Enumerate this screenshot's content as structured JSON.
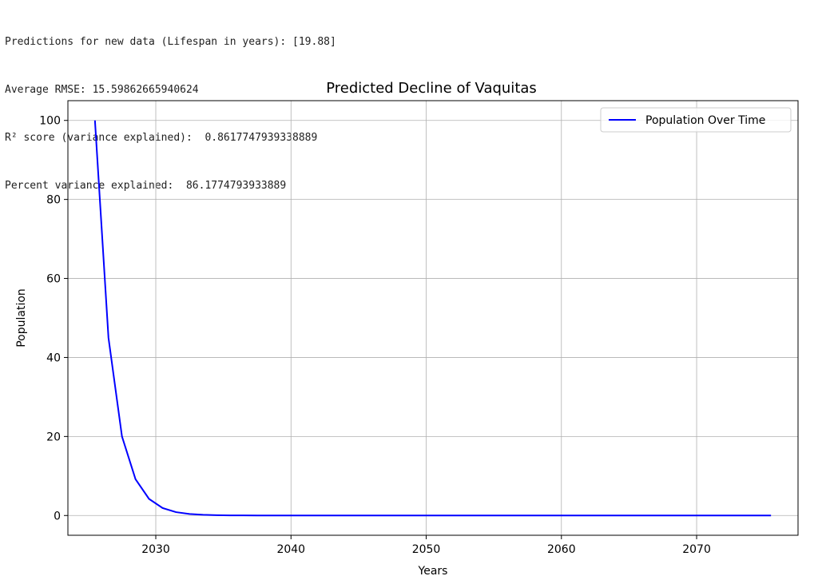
{
  "console": {
    "lines": [
      "Predictions for new data (Lifespan in years): [19.88]",
      "Average RMSE: 15.59862665940624",
      "R² score (variance explained):  0.8617747939338889",
      "Percent variance explained:  86.1774793933889"
    ]
  },
  "chart_data": {
    "type": "line",
    "title": "Predicted Decline of Vaquitas",
    "xlabel": "Years",
    "ylabel": "Population",
    "xlim": [
      2023.5,
      2077.5
    ],
    "ylim": [
      -5,
      105
    ],
    "xticks": [
      2030,
      2040,
      2050,
      2060,
      2070
    ],
    "yticks": [
      0,
      20,
      40,
      60,
      80,
      100
    ],
    "grid": true,
    "legend_position": "top-right",
    "series_color": "#0000ff",
    "series": [
      {
        "name": "Population Over Time",
        "x": [
          2025.5,
          2026.5,
          2027.5,
          2028.5,
          2029.5,
          2030.5,
          2031.5,
          2032.5,
          2033.5,
          2034.5,
          2035.5,
          2036.5,
          2037.5,
          2038.5,
          2039.5,
          2040.5,
          2041.5,
          2042.5,
          2043.5,
          2044.5,
          2045.5,
          2046.5,
          2047.5,
          2048.5,
          2049.5,
          2050.5,
          2051.5,
          2052.5,
          2053.5,
          2054.5,
          2055.5,
          2056.5,
          2057.5,
          2058.5,
          2059.5,
          2060.5,
          2061.5,
          2062.5,
          2063.5,
          2064.5,
          2065.5,
          2066.5,
          2067.5,
          2068.5,
          2069.5,
          2070.5,
          2071.5,
          2072.5,
          2073.5,
          2074.5,
          2075.5
        ],
        "y": [
          100,
          45,
          20,
          9.2,
          4.2,
          1.9,
          0.85,
          0.38,
          0.17,
          0.08,
          0.04,
          0.02,
          0.01,
          0,
          0,
          0,
          0,
          0,
          0,
          0,
          0,
          0,
          0,
          0,
          0,
          0,
          0,
          0,
          0,
          0,
          0,
          0,
          0,
          0,
          0,
          0,
          0,
          0,
          0,
          0,
          0,
          0,
          0,
          0,
          0,
          0,
          0,
          0,
          0,
          0,
          0
        ]
      }
    ]
  }
}
